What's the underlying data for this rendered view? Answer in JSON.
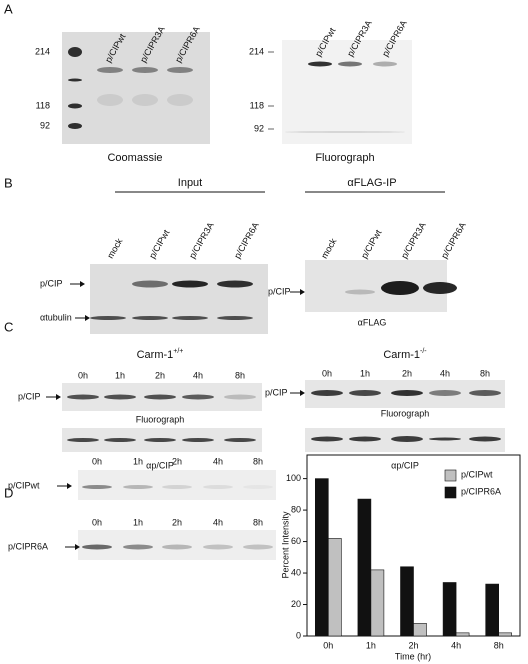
{
  "panel_a": {
    "label": "A",
    "lanes": [
      "p/CIPwt",
      "p/CIPR3A",
      "p/CIPR6A"
    ],
    "left_markers": [
      "214",
      "118",
      "92"
    ],
    "right_markers": [
      "214",
      "118",
      "92"
    ],
    "left_caption": "Coomassie",
    "right_caption": "Fluorograph"
  },
  "panel_b": {
    "label": "B",
    "input_title": "Input",
    "ip_title": "αFLAG-IP",
    "input_lanes": [
      "mock",
      "p/CIPwt",
      "p/CIPR3A",
      "p/CIPR6A"
    ],
    "ip_lanes": [
      "mock",
      "p/CIPwt",
      "p/CIPR3A",
      "p/CIPR6A"
    ],
    "input_rows": [
      "p/CIP",
      "αtubulin"
    ],
    "ip_row": "p/CIP",
    "ip_caption": "αFLAG"
  },
  "panel_c": {
    "label": "C",
    "left_title": "Carm-1",
    "left_title_sup": "+/+",
    "right_title": "Carm-1",
    "right_title_sup": "-/-",
    "left_timepoints": [
      "0h",
      "1h",
      "2h",
      "4h",
      "8h"
    ],
    "right_timepoints": [
      "0h",
      "1h",
      "2h",
      "4h",
      "8h"
    ],
    "left_row": "p/CIP",
    "right_row": "p/CIP",
    "left_caption_top": "Fluorograph",
    "right_caption_top": "Fluorograph",
    "left_caption_bottom": "αp/CIP",
    "right_caption_bottom": "αp/CIP"
  },
  "panel_d": {
    "label": "D",
    "rows": [
      {
        "name": "p/CIPwt",
        "timepoints": [
          "0h",
          "1h",
          "2h",
          "4h",
          "8h"
        ]
      },
      {
        "name": "p/CIPR6A",
        "timepoints": [
          "0h",
          "1h",
          "2h",
          "4h",
          "8h"
        ]
      }
    ]
  },
  "chart_data": {
    "type": "bar",
    "categories": [
      "0h",
      "1h",
      "2h",
      "4h",
      "8h"
    ],
    "x_label": "Time (hr)",
    "y_label": "Percent Intensity",
    "series": [
      {
        "name": "p/CIPwt",
        "color": "#c0c0c0",
        "values": [
          62,
          42,
          8,
          2,
          2
        ]
      },
      {
        "name": "p/CIPR6A",
        "color": "#111111",
        "values": [
          100,
          87,
          44,
          34,
          33
        ]
      }
    ],
    "ylim": [
      0,
      115
    ],
    "yticks": [
      0,
      20,
      40,
      60,
      80,
      100
    ],
    "legend": "top-right"
  }
}
